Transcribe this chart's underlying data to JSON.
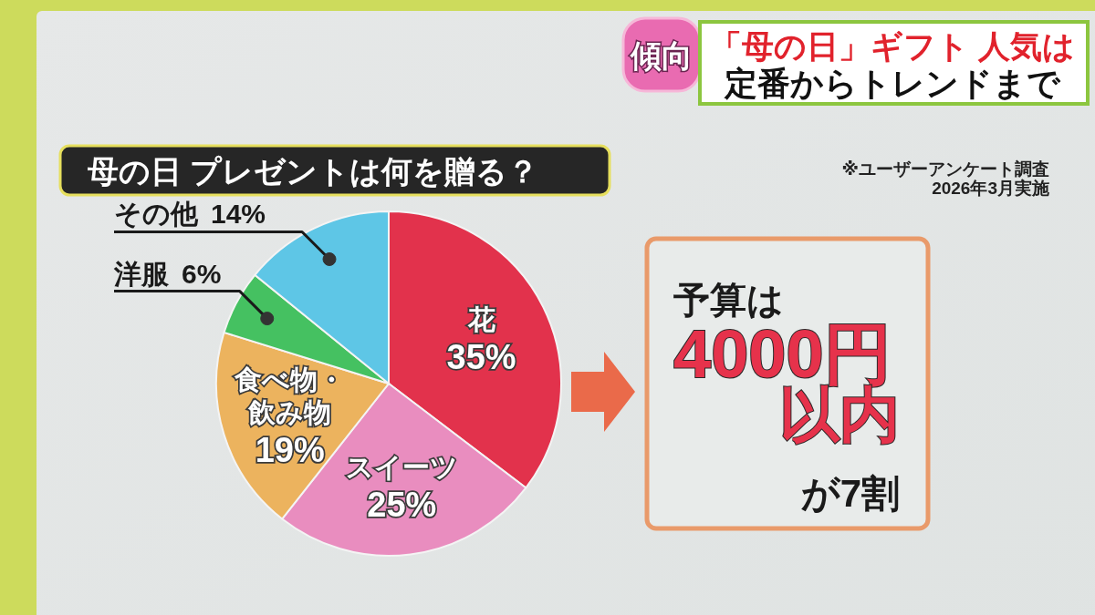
{
  "chart_data": [
    {
      "type": "other",
      "title": "「母の日」ギフト 人気は",
      "subtitle": "定番からトレンドまで",
      "annotations": [
        "傾向"
      ]
    },
    {
      "type": "pie",
      "title": "母の日 プレゼントは何を贈る？",
      "categories": [
        "花",
        "スイーツ",
        "食べ物・飲み物",
        "洋服",
        "その他"
      ],
      "values": [
        35,
        25,
        19,
        6,
        14
      ],
      "value_labels": [
        "35%",
        "25%",
        "19%",
        "6%",
        "14%"
      ],
      "colors": [
        "#e2324c",
        "#e98dbf",
        "#ecb35e",
        "#45c161",
        "#5ec6e6"
      ],
      "annotations": [
        "※ユーザーアンケート調査",
        "2026年3月実施"
      ]
    },
    {
      "type": "other",
      "title": "予算は",
      "annotations": [
        "4000円",
        "以内",
        "が7割"
      ]
    }
  ]
}
